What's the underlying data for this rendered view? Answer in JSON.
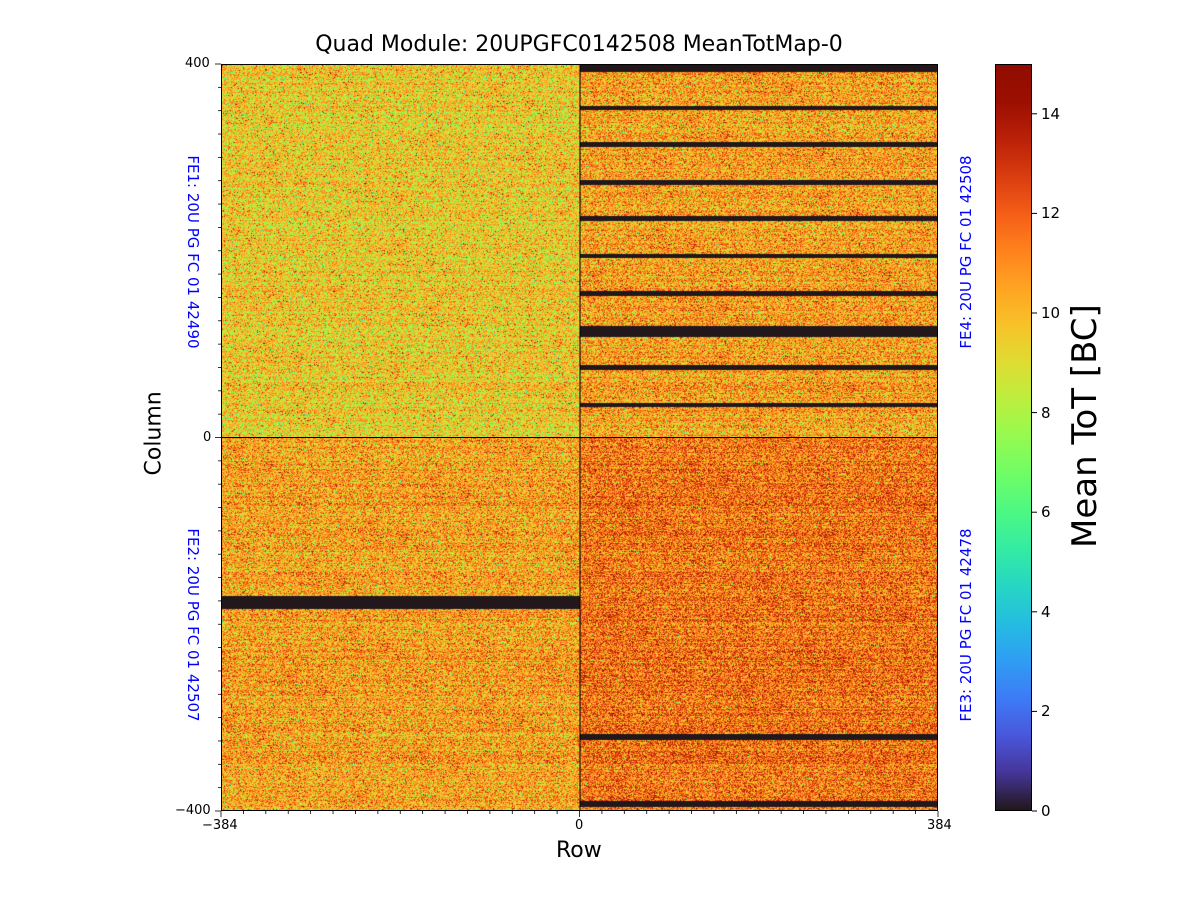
{
  "chart_data": {
    "type": "heatmap",
    "title": "Quad Module: 20UPGFC0142508 MeanTotMap-0",
    "xlabel": "Row",
    "ylabel": "Column",
    "xlim": [
      -384,
      384
    ],
    "ylim": [
      -400,
      400
    ],
    "x_ticks": [
      "−384",
      "0",
      "0",
      "384"
    ],
    "y_ticks": [
      "400",
      "0",
      "−400"
    ],
    "colorbar": {
      "label": "Mean ToT [BC]",
      "range": [
        0,
        15
      ],
      "ticks": [
        "0",
        "2",
        "4",
        "6",
        "8",
        "10",
        "12",
        "14"
      ],
      "colormap": "turbo"
    },
    "front_ends": [
      {
        "name": "FE1: 20U PG FC 01 42490",
        "quadrant": "top-left",
        "typical_mean_tot": 9.5,
        "dead_column_bands": []
      },
      {
        "name": "FE2: 20U PG FC 01 42507",
        "quadrant": "bottom-left",
        "typical_mean_tot": 10.5,
        "dead_column_bands": [
          [
            -184,
            -170
          ]
        ]
      },
      {
        "name": "FE3: 20U PG FC 01 42478",
        "quadrant": "bottom-right",
        "typical_mean_tot": 11.5,
        "dead_column_bands": [
          [
            -324,
            -318
          ],
          [
            -396,
            -390
          ]
        ]
      },
      {
        "name": "FE4: 20U PG FC 01 42508",
        "quadrant": "top-right",
        "typical_mean_tot": 10.5,
        "dead_column_bands": [
          [
            393,
            400
          ],
          [
            352,
            357
          ],
          [
            313,
            318
          ],
          [
            272,
            277
          ],
          [
            233,
            238
          ],
          [
            193,
            198
          ],
          [
            153,
            158
          ],
          [
            108,
            120
          ],
          [
            73,
            78
          ],
          [
            33,
            38
          ]
        ]
      }
    ]
  }
}
